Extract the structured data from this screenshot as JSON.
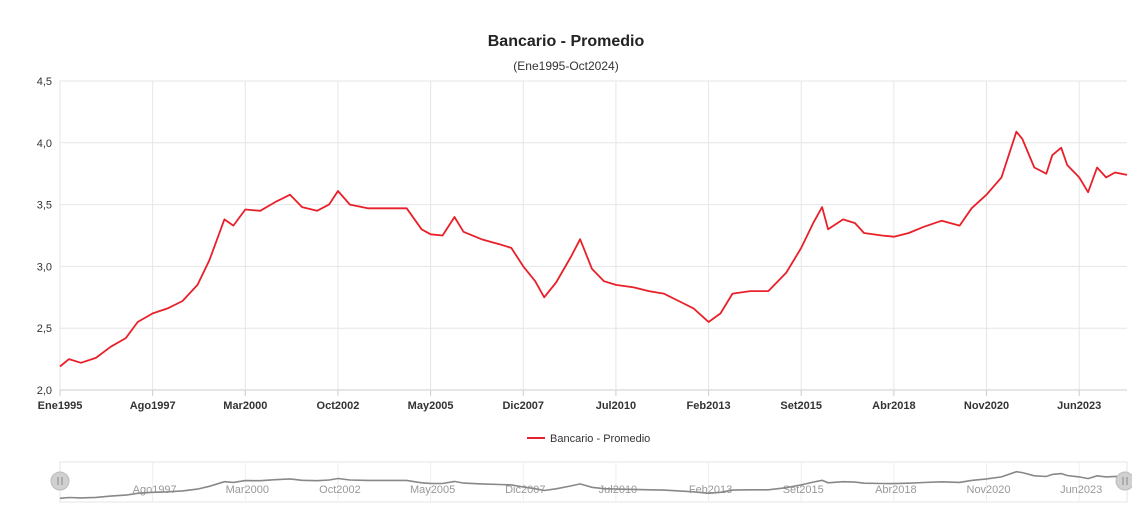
{
  "chart_data": {
    "type": "line",
    "title": "Bancario - Promedio",
    "subtitle": "(Ene1995-Oct2024)",
    "ylim": [
      2.0,
      4.5
    ],
    "yticks": [
      "2,0",
      "2,5",
      "3,0",
      "3,5",
      "4,0",
      "4,5"
    ],
    "ytick_values": [
      2.0,
      2.5,
      3.0,
      3.5,
      4.0,
      4.5
    ],
    "x_start": "1995-01",
    "x_end": "2024-10",
    "xticks": [
      "Ene1995",
      "Ago1997",
      "Mar2000",
      "Oct2002",
      "May2005",
      "Dic2007",
      "Jul2010",
      "Feb2013",
      "Set2015",
      "Abr2018",
      "Nov2020",
      "Jun2023"
    ],
    "xtick_dates": [
      "1995-01",
      "1997-08",
      "2000-03",
      "2002-10",
      "2005-05",
      "2007-12",
      "2010-07",
      "2013-02",
      "2015-09",
      "2018-04",
      "2020-11",
      "2023-06"
    ],
    "navigator_ticks": [
      "Ago1997",
      "Mar2000",
      "Oct2002",
      "May2005",
      "Dic2007",
      "Jul2010",
      "Feb2013",
      "Set2015",
      "Abr2018",
      "Nov2020",
      "Jun2023"
    ],
    "grid": true,
    "legend_position": "bottom-center",
    "series": [
      {
        "name": "Bancario - Promedio",
        "color": "#e8202a",
        "points": [
          [
            "1995-01",
            2.19
          ],
          [
            "1995-04",
            2.25
          ],
          [
            "1995-08",
            2.22
          ],
          [
            "1996-01",
            2.26
          ],
          [
            "1996-06",
            2.35
          ],
          [
            "1996-11",
            2.42
          ],
          [
            "1997-03",
            2.55
          ],
          [
            "1997-08",
            2.62
          ],
          [
            "1998-01",
            2.66
          ],
          [
            "1998-06",
            2.72
          ],
          [
            "1998-11",
            2.85
          ],
          [
            "1999-03",
            3.05
          ],
          [
            "1999-08",
            3.38
          ],
          [
            "1999-11",
            3.33
          ],
          [
            "2000-03",
            3.46
          ],
          [
            "2000-08",
            3.45
          ],
          [
            "2001-01",
            3.52
          ],
          [
            "2001-06",
            3.58
          ],
          [
            "2001-10",
            3.48
          ],
          [
            "2002-03",
            3.45
          ],
          [
            "2002-07",
            3.5
          ],
          [
            "2002-10",
            3.61
          ],
          [
            "2003-02",
            3.5
          ],
          [
            "2003-08",
            3.47
          ],
          [
            "2004-03",
            3.47
          ],
          [
            "2004-09",
            3.47
          ],
          [
            "2005-02",
            3.3
          ],
          [
            "2005-05",
            3.26
          ],
          [
            "2005-09",
            3.25
          ],
          [
            "2006-01",
            3.4
          ],
          [
            "2006-04",
            3.28
          ],
          [
            "2006-10",
            3.22
          ],
          [
            "2007-04",
            3.18
          ],
          [
            "2007-08",
            3.15
          ],
          [
            "2007-12",
            3.0
          ],
          [
            "2008-04",
            2.88
          ],
          [
            "2008-07",
            2.75
          ],
          [
            "2008-11",
            2.87
          ],
          [
            "2009-04",
            3.08
          ],
          [
            "2009-07",
            3.22
          ],
          [
            "2009-11",
            2.98
          ],
          [
            "2010-03",
            2.88
          ],
          [
            "2010-07",
            2.85
          ],
          [
            "2011-01",
            2.83
          ],
          [
            "2011-06",
            2.8
          ],
          [
            "2011-11",
            2.78
          ],
          [
            "2012-04",
            2.72
          ],
          [
            "2012-09",
            2.66
          ],
          [
            "2013-02",
            2.55
          ],
          [
            "2013-06",
            2.62
          ],
          [
            "2013-10",
            2.78
          ],
          [
            "2014-04",
            2.8
          ],
          [
            "2014-10",
            2.8
          ],
          [
            "2015-04",
            2.95
          ],
          [
            "2015-09",
            3.15
          ],
          [
            "2016-01",
            3.35
          ],
          [
            "2016-04",
            3.48
          ],
          [
            "2016-06",
            3.3
          ],
          [
            "2016-11",
            3.38
          ],
          [
            "2017-03",
            3.35
          ],
          [
            "2017-06",
            3.27
          ],
          [
            "2017-12",
            3.25
          ],
          [
            "2018-04",
            3.24
          ],
          [
            "2018-09",
            3.27
          ],
          [
            "2019-02",
            3.32
          ],
          [
            "2019-08",
            3.37
          ],
          [
            "2020-02",
            3.33
          ],
          [
            "2020-06",
            3.47
          ],
          [
            "2020-11",
            3.58
          ],
          [
            "2021-04",
            3.72
          ],
          [
            "2021-09",
            4.09
          ],
          [
            "2021-11",
            4.03
          ],
          [
            "2022-03",
            3.8
          ],
          [
            "2022-07",
            3.75
          ],
          [
            "2022-09",
            3.9
          ],
          [
            "2022-12",
            3.96
          ],
          [
            "2023-02",
            3.82
          ],
          [
            "2023-06",
            3.72
          ],
          [
            "2023-09",
            3.6
          ],
          [
            "2023-12",
            3.8
          ],
          [
            "2024-03",
            3.72
          ],
          [
            "2024-06",
            3.76
          ],
          [
            "2024-10",
            3.74
          ]
        ]
      }
    ]
  }
}
